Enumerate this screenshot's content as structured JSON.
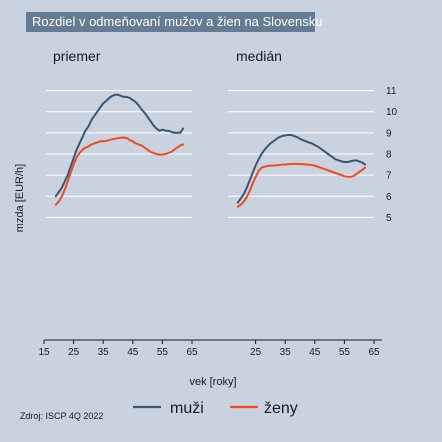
{
  "colors": {
    "background": "#c9d3df",
    "title_box": "#647b94",
    "grid": "#ffffff",
    "muzi": "#3a5670",
    "zeny": "#f24a1c"
  },
  "chart_data": {
    "type": "line",
    "title": "Rozdiel v odmeňovaní mužov a žien na Slovensku",
    "xlabel": "vek [roky]",
    "ylabel": "mzda [EUR/h]",
    "source": "Zdroj: ISCP 4Q 2022",
    "xlim": [
      15,
      65
    ],
    "ylim": [
      -0.8,
      11.5
    ],
    "x_ticks": [
      "15",
      "25",
      "35",
      "45",
      "55",
      "65"
    ],
    "y_ticks": [
      "5",
      "6",
      "7",
      "8",
      "9",
      "10",
      "11"
    ],
    "y_tick_values": [
      5,
      6,
      7,
      8,
      9,
      10,
      11
    ],
    "grid": true,
    "legend_position": "bottom",
    "legend": [
      "muži",
      "ženy"
    ],
    "panels": [
      {
        "title": "priemer",
        "series": [
          {
            "name": "muži",
            "x": [
              19,
              20,
              21,
              22,
              23,
              24,
              25,
              26,
              27,
              28,
              29,
              30,
              31,
              32,
              33,
              34,
              35,
              36,
              37,
              38,
              39,
              40,
              41,
              42,
              43,
              44,
              45,
              46,
              47,
              48,
              49,
              50,
              51,
              52,
              53,
              54,
              55,
              56,
              57,
              58,
              59,
              60,
              61,
              62
            ],
            "values": [
              6.0,
              6.2,
              6.4,
              6.7,
              7.0,
              7.4,
              7.8,
              8.2,
              8.5,
              8.8,
              9.1,
              9.3,
              9.6,
              9.8,
              10.0,
              10.2,
              10.4,
              10.5,
              10.65,
              10.75,
              10.8,
              10.8,
              10.75,
              10.7,
              10.7,
              10.65,
              10.55,
              10.45,
              10.3,
              10.1,
              9.95,
              9.75,
              9.55,
              9.35,
              9.2,
              9.1,
              9.15,
              9.1,
              9.1,
              9.05,
              9.0,
              9.0,
              9.0,
              9.2
            ]
          },
          {
            "name": "ženy",
            "x": [
              19,
              20,
              21,
              22,
              23,
              24,
              25,
              26,
              27,
              28,
              29,
              30,
              31,
              32,
              33,
              34,
              35,
              36,
              37,
              38,
              39,
              40,
              41,
              42,
              43,
              44,
              45,
              46,
              47,
              48,
              49,
              50,
              51,
              52,
              53,
              54,
              55,
              56,
              57,
              58,
              59,
              60,
              61,
              62
            ],
            "values": [
              5.6,
              5.75,
              6.0,
              6.3,
              6.7,
              7.1,
              7.5,
              7.85,
              8.05,
              8.2,
              8.3,
              8.35,
              8.45,
              8.5,
              8.55,
              8.6,
              8.6,
              8.62,
              8.65,
              8.7,
              8.72,
              8.75,
              8.77,
              8.78,
              8.75,
              8.65,
              8.6,
              8.5,
              8.45,
              8.4,
              8.3,
              8.2,
              8.1,
              8.05,
              8.0,
              7.97,
              7.97,
              8.0,
              8.05,
              8.1,
              8.2,
              8.3,
              8.4,
              8.45
            ]
          }
        ]
      },
      {
        "title": "medián",
        "series": [
          {
            "name": "muži",
            "x": [
              19,
              20,
              21,
              22,
              23,
              24,
              25,
              26,
              27,
              28,
              29,
              30,
              31,
              32,
              33,
              34,
              35,
              36,
              37,
              38,
              39,
              40,
              41,
              42,
              43,
              44,
              45,
              46,
              47,
              48,
              49,
              50,
              51,
              52,
              53,
              54,
              55,
              56,
              57,
              58,
              59,
              60,
              61,
              62
            ],
            "values": [
              5.7,
              5.9,
              6.1,
              6.4,
              6.75,
              7.1,
              7.45,
              7.75,
              8.0,
              8.2,
              8.35,
              8.5,
              8.6,
              8.7,
              8.8,
              8.85,
              8.88,
              8.9,
              8.9,
              8.85,
              8.8,
              8.72,
              8.65,
              8.6,
              8.55,
              8.5,
              8.42,
              8.35,
              8.25,
              8.15,
              8.05,
              7.95,
              7.85,
              7.75,
              7.7,
              7.65,
              7.62,
              7.62,
              7.65,
              7.68,
              7.7,
              7.65,
              7.6,
              7.5
            ]
          },
          {
            "name": "ženy",
            "x": [
              19,
              20,
              21,
              22,
              23,
              24,
              25,
              26,
              27,
              28,
              29,
              30,
              31,
              32,
              33,
              34,
              35,
              36,
              37,
              38,
              39,
              40,
              41,
              42,
              43,
              44,
              45,
              46,
              47,
              48,
              49,
              50,
              51,
              52,
              53,
              54,
              55,
              56,
              57,
              58,
              59,
              60,
              61,
              62
            ],
            "values": [
              5.5,
              5.6,
              5.75,
              5.95,
              6.25,
              6.6,
              6.9,
              7.2,
              7.35,
              7.4,
              7.43,
              7.45,
              7.45,
              7.47,
              7.48,
              7.5,
              7.5,
              7.52,
              7.52,
              7.53,
              7.53,
              7.52,
              7.52,
              7.5,
              7.5,
              7.48,
              7.45,
              7.4,
              7.35,
              7.3,
              7.25,
              7.2,
              7.15,
              7.1,
              7.05,
              7.0,
              6.95,
              6.92,
              6.92,
              6.95,
              7.05,
              7.15,
              7.25,
              7.35
            ]
          }
        ]
      }
    ]
  }
}
